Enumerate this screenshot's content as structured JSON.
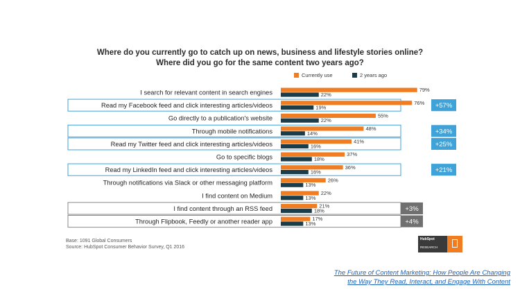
{
  "title_line1": "Where do you currently go to catch up on news, business and lifestyle stories online?",
  "title_line2": "Where did you go for the same content two years ago?",
  "base_note": "Base: 1091 Global Consumers",
  "source_note": "Source: HubSpot Consumer Behavior Survey, Q1 2016",
  "logo": {
    "line1": "HubSpot",
    "line2": "RESEARCH",
    "icon": "document-icon"
  },
  "link": {
    "line1": "The Future of Content Marketing: How People Are Changing",
    "line2": "the Way They Read, Interact, and Engage With Content"
  },
  "colors": {
    "current": "#f07d21",
    "past": "#1b3d4a",
    "blue_badge": "#3fa3d9",
    "gray_badge": "#707070"
  },
  "chart_data": {
    "type": "bar",
    "orientation": "horizontal",
    "categories": [
      "I search for relevant content in search engines",
      "Read my Facebook feed and click interesting articles/videos",
      "Go directly to a publication's website",
      "Through mobile notifications",
      "Read my Twitter feed and click interesting articles/videos",
      "Go to specific blogs",
      "Read my LinkedIn feed and click interesting articles/videos",
      "Through notifications via Slack or other messaging platform",
      "I find content on Medium",
      "I find content through an RSS feed",
      "Through Flipbook, Feedly or another reader app"
    ],
    "series": [
      {
        "name": "Currently use",
        "values": [
          79,
          76,
          55,
          48,
          41,
          37,
          36,
          26,
          22,
          21,
          17
        ]
      },
      {
        "name": "2 years ago",
        "values": [
          22,
          19,
          22,
          14,
          16,
          18,
          16,
          13,
          13,
          18,
          13
        ]
      }
    ],
    "value_suffix": "%",
    "xlim": [
      0,
      100
    ],
    "legend_position": "top-right",
    "grid": false,
    "annotations": [
      {
        "index": 1,
        "text": "+57%",
        "style": "blue"
      },
      {
        "index": 3,
        "text": "+34%",
        "style": "blue"
      },
      {
        "index": 4,
        "text": "+25%",
        "style": "blue"
      },
      {
        "index": 6,
        "text": "+21%",
        "style": "blue"
      },
      {
        "index": 9,
        "text": "+3%",
        "style": "gray"
      },
      {
        "index": 10,
        "text": "+4%",
        "style": "gray"
      }
    ]
  }
}
